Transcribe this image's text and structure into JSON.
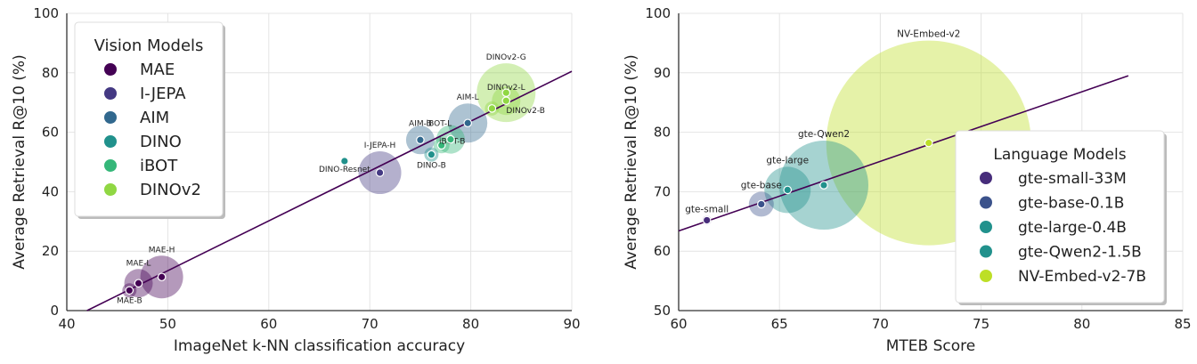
{
  "chart_data": [
    {
      "type": "scatter",
      "xlabel": "ImageNet k-NN classification accuracy",
      "ylabel": "Average Retrieval R@10 (%)",
      "xlim": [
        40,
        90
      ],
      "ylim": [
        0,
        100
      ],
      "xticks": [
        "40",
        "50",
        "60",
        "70",
        "80",
        "90"
      ],
      "yticks": [
        "0",
        "20",
        "40",
        "60",
        "80",
        "100"
      ],
      "grid": true,
      "legend": {
        "title": "Vision Models",
        "placement": "top-left",
        "entries": [
          {
            "label": "MAE",
            "color": "#440154"
          },
          {
            "label": "I-JEPA",
            "color": "#443983"
          },
          {
            "label": "AIM",
            "color": "#31688e"
          },
          {
            "label": "DINO",
            "color": "#21918c"
          },
          {
            "label": "iBOT",
            "color": "#35b779"
          },
          {
            "label": "DINOv2",
            "color": "#90d743"
          }
        ]
      },
      "points": [
        {
          "label": "MAE-B",
          "family": "MAE",
          "x": 46.2,
          "y": 6.8,
          "size": 8
        },
        {
          "label": "MAE-L",
          "family": "MAE",
          "x": 47.1,
          "y": 9.2,
          "size": 16
        },
        {
          "label": "MAE-H",
          "family": "MAE",
          "x": 49.4,
          "y": 11.3,
          "size": 24
        },
        {
          "label": "DINO-Resnet",
          "family": "DINO",
          "x": 67.5,
          "y": 50.3,
          "size": 0
        },
        {
          "label": "I-JEPA-H",
          "family": "I-JEPA",
          "x": 71.0,
          "y": 46.4,
          "size": 24
        },
        {
          "label": "AIM-B",
          "family": "AIM",
          "x": 75.0,
          "y": 57.4,
          "size": 16
        },
        {
          "label": "DINO-B",
          "family": "DINO",
          "x": 76.1,
          "y": 52.5,
          "size": 8
        },
        {
          "label": "iBOT-B",
          "family": "iBOT",
          "x": 77.1,
          "y": 55.6,
          "size": 9
        },
        {
          "label": "iBOT-L",
          "family": "iBOT",
          "x": 78.0,
          "y": 57.6,
          "size": 16
        },
        {
          "label": "AIM-L",
          "family": "AIM",
          "x": 79.7,
          "y": 63.1,
          "size": 22
        },
        {
          "label": "DINOv2-B",
          "family": "DINOv2",
          "x": 82.1,
          "y": 68.0,
          "size": 8
        },
        {
          "label": "DINOv2-L",
          "family": "DINOv2",
          "x": 83.5,
          "y": 70.6,
          "size": 16
        },
        {
          "label": "DINOv2-G",
          "family": "DINOv2",
          "x": 83.5,
          "y": 73.3,
          "size": 33
        }
      ],
      "fit_line": {
        "x": [
          42,
          90
        ],
        "y": [
          0,
          80.5
        ],
        "color": "#440154"
      }
    },
    {
      "type": "scatter",
      "xlabel": "MTEB Score",
      "ylabel": "Average Retrieval R@10 (%)",
      "xlim": [
        60,
        85
      ],
      "ylim": [
        50,
        100
      ],
      "xticks": [
        "60",
        "65",
        "70",
        "75",
        "80",
        "85"
      ],
      "yticks": [
        "50",
        "60",
        "70",
        "80",
        "90",
        "100"
      ],
      "grid": true,
      "legend": {
        "title": "Language Models",
        "placement": "bottom-right",
        "entries": [
          {
            "label": "gte-small-33M",
            "color": "#472d7b"
          },
          {
            "label": "gte-base-0.1B",
            "color": "#3b528b"
          },
          {
            "label": "gte-large-0.4B",
            "color": "#21918c"
          },
          {
            "label": "gte-Qwen2-1.5B",
            "color": "#21918c"
          },
          {
            "label": "NV-Embed-v2-7B",
            "color": "#bddf26"
          }
        ]
      },
      "points": [
        {
          "label": "gte-small",
          "family": "gte-small-33M",
          "x": 61.4,
          "y": 65.2,
          "size": 5
        },
        {
          "label": "gte-base",
          "family": "gte-base-0.1B",
          "x": 64.1,
          "y": 67.9,
          "size": 14
        },
        {
          "label": "gte-large",
          "family": "gte-large-0.4B",
          "x": 65.4,
          "y": 70.3,
          "size": 26
        },
        {
          "label": "gte-Qwen2",
          "family": "gte-Qwen2-1.5B",
          "x": 67.2,
          "y": 71.1,
          "size": 50
        },
        {
          "label": "NV-Embed-v2",
          "family": "NV-Embed-v2-7B",
          "x": 72.4,
          "y": 78.2,
          "size": 115
        }
      ],
      "fit_line": {
        "x": [
          60,
          82.3
        ],
        "y": [
          63.4,
          89.5
        ],
        "color": "#440154"
      }
    }
  ]
}
